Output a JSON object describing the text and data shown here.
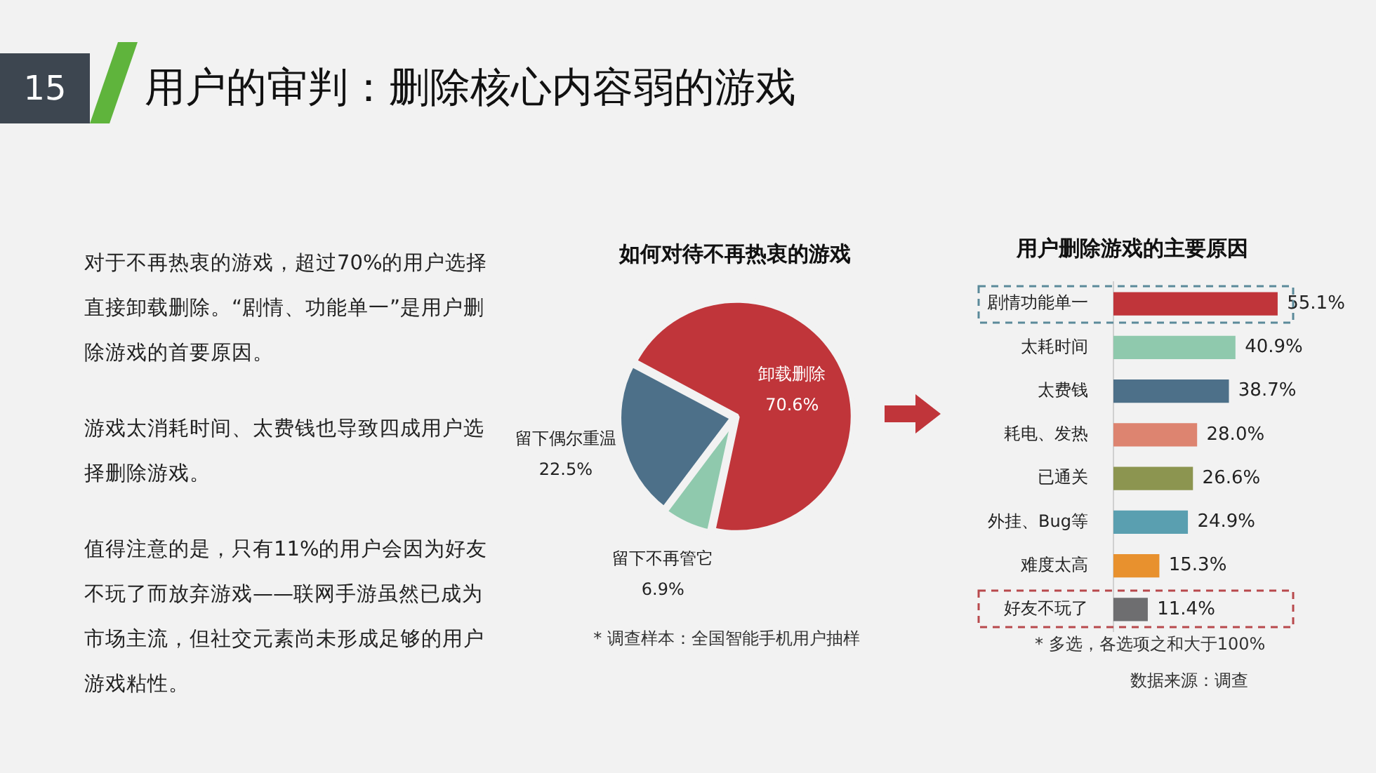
{
  "chart_data": [
    {
      "type": "other",
      "title": "用户的审判：删除核心内容弱的游戏",
      "annotations": [
        "15",
        "对于不再热衷的游戏，超过70%的用户选择直接卸载删除。“剧情、功能单一”是用户删除游戏的首要原因。",
        "游戏太消耗时间、太费钱也导致四成用户选择删除游戏。",
        "值得注意的是，只有11%的用户会因为好友不玩了而放弃游戏——联网手游虽然已成为市场主流，但社交元素尚未形成足够的用户游戏粘性。"
      ]
    },
    {
      "type": "pie",
      "title": "如何对待不再热衷的游戏",
      "categories": [
        "卸载删除",
        "留下不再管它",
        "留下偶尔重温"
      ],
      "values": [
        70.6,
        6.9,
        22.5
      ],
      "value_labels": [
        "70.6%",
        "6.9%",
        "22.5%"
      ],
      "colors": [
        "#c0353a",
        "#8fc9ad",
        "#4d7089"
      ],
      "annotations": [
        "* 调查样本：全国智能手机用户抽样"
      ]
    },
    {
      "type": "bar",
      "orientation": "horizontal",
      "title": "用户删除游戏的主要原因",
      "categories": [
        "剧情功能单一",
        "太耗时间",
        "太费钱",
        "耗电、发热",
        "已通关",
        "外挂、Bug等",
        "难度太高",
        "好友不玩了"
      ],
      "values": [
        55.1,
        40.9,
        38.7,
        28.0,
        26.6,
        24.9,
        15.3,
        11.4
      ],
      "value_labels": [
        "55.1%",
        "40.9%",
        "38.7%",
        "28.0%",
        "26.6%",
        "24.9%",
        "15.3%",
        "11.4%"
      ],
      "colors": [
        "#c0353a",
        "#8fc9ad",
        "#4d7089",
        "#dd8470",
        "#8c9550",
        "#5a9fb0",
        "#e8912e",
        "#6e6e70"
      ],
      "tick_labels": false,
      "annotations": [
        "* 多选，各选项之和大于100%",
        "数据来源：调查"
      ]
    }
  ]
}
